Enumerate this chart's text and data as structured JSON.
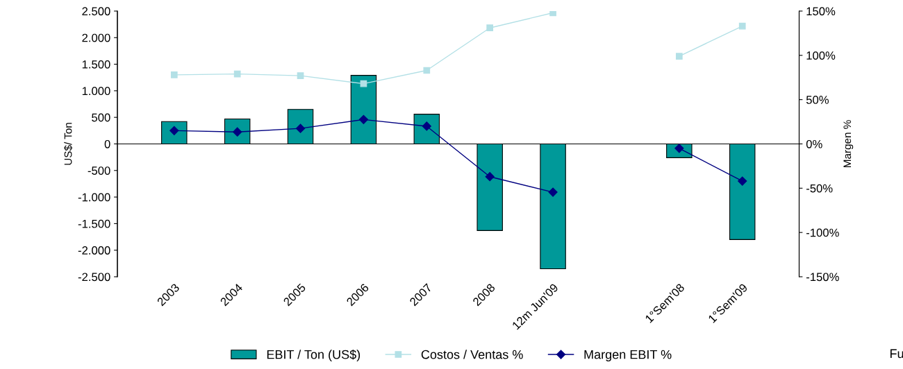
{
  "chart_data": {
    "type": "bar",
    "categories": [
      "2003",
      "2004",
      "2005",
      "2006",
      "2007",
      "2008",
      "12m Jun'09",
      null,
      "1°Sem'08",
      "1°Sem'09"
    ],
    "ylabel": "US$/ Ton",
    "y2label": "Margen %",
    "ylim": [
      -2500,
      2500
    ],
    "yticks": [
      {
        "value": -2500,
        "label": "-2.500"
      },
      {
        "value": -2000,
        "label": "-2.000"
      },
      {
        "value": -1500,
        "label": "-1.500"
      },
      {
        "value": -1000,
        "label": "-1.000"
      },
      {
        "value": -500,
        "label": "-500"
      },
      0,
      500,
      {
        "value": 1000,
        "label": "1.000"
      },
      {
        "value": 1500,
        "label": "1.500"
      },
      {
        "value": 2000,
        "label": "2.000"
      },
      {
        "value": 2500,
        "label": "2.500"
      }
    ],
    "y2lim": [
      -150,
      150
    ],
    "y2ticks": [
      {
        "value": -150,
        "label": "-150%"
      },
      {
        "value": -100,
        "label": "-100%"
      },
      {
        "value": -50,
        "label": "-50%"
      },
      {
        "value": 0,
        "label": "0%"
      },
      {
        "value": 50,
        "label": "50%"
      },
      {
        "value": 100,
        "label": "100%"
      },
      {
        "value": 150,
        "label": "150%"
      }
    ],
    "series": [
      {
        "name": "EBIT / Ton (US$)",
        "color": "#009999",
        "values": [
          420,
          470,
          650,
          1290,
          560,
          -1630,
          -2350,
          null,
          -260,
          -1800
        ]
      },
      {
        "name": "Costos / Ventas %",
        "type": "line",
        "axis": "y2",
        "marker": "square",
        "color": "#b3e0e6",
        "values": [
          78,
          79,
          77,
          68,
          83,
          131,
          148,
          null,
          99,
          133
        ]
      },
      {
        "name": "Margen EBIT %",
        "type": "line",
        "axis": "y2",
        "marker": "diamond",
        "color": "#000080",
        "values": [
          15,
          13.5,
          17.5,
          27.5,
          20,
          -37,
          -54.5,
          null,
          -5,
          -42
        ]
      }
    ],
    "legend": "bottom",
    "annotations": [
      "Fu"
    ]
  }
}
